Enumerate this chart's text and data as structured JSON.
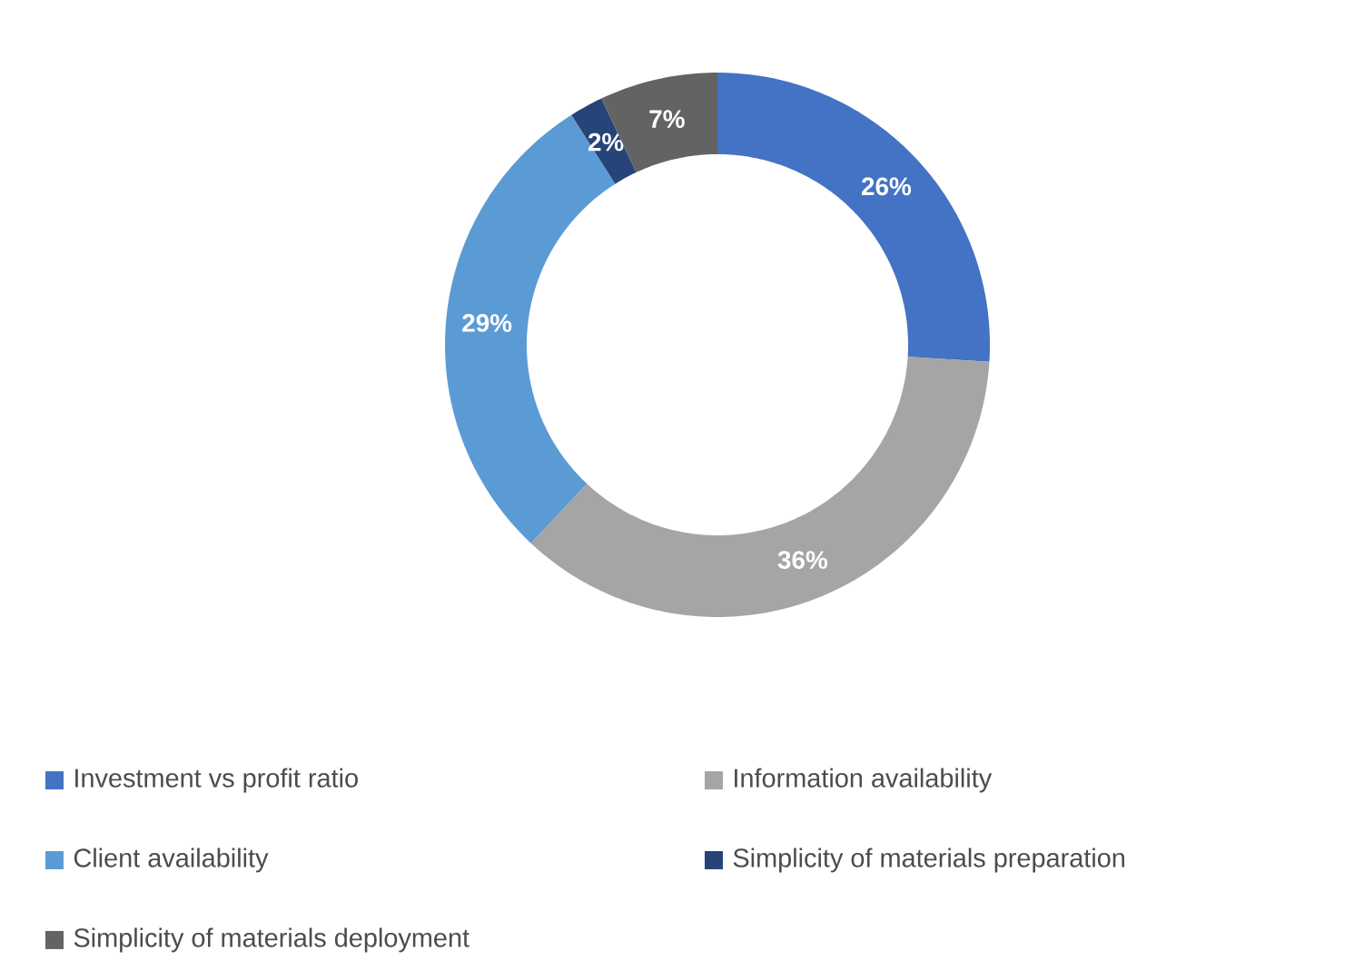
{
  "chart_data": {
    "type": "donut",
    "categories": [
      "Investment vs profit ratio",
      "Information availability",
      "Client availability",
      "Simplicity of materials preparation",
      "Simplicity of materials deployment"
    ],
    "values": [
      26,
      36,
      29,
      2,
      7
    ],
    "value_labels": [
      "26%",
      "36%",
      "29%",
      "2%",
      "7%"
    ],
    "colors": [
      "#4472c4",
      "#a5a5a5",
      "#5b9bd5",
      "#264478",
      "#636363"
    ],
    "legend": "bottom"
  }
}
